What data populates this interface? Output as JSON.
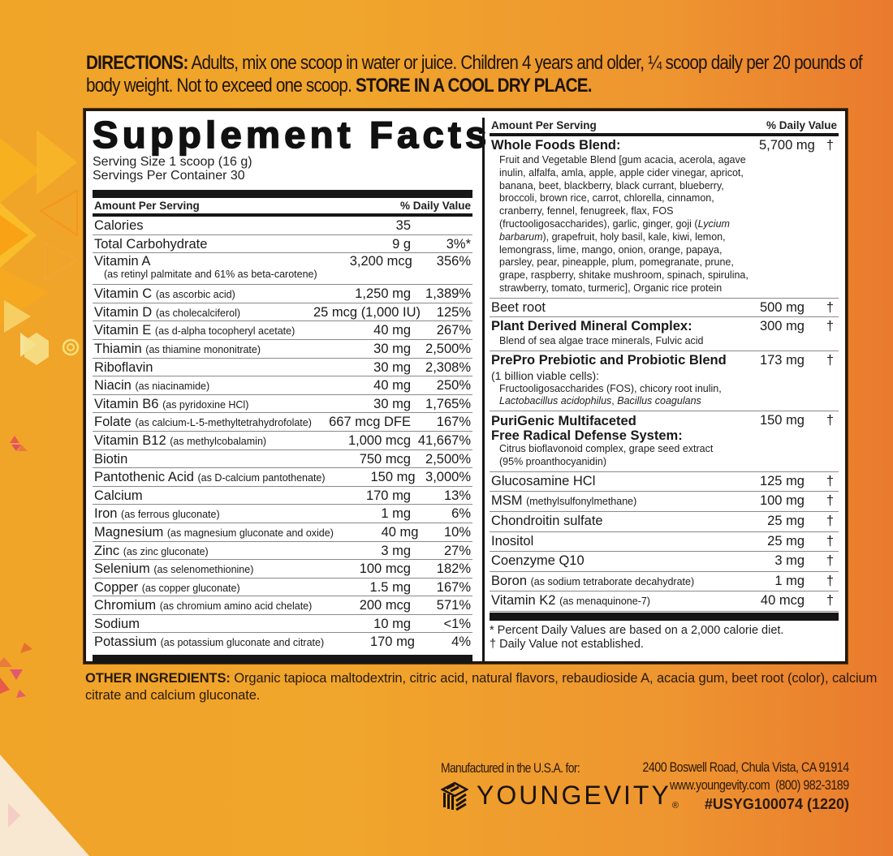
{
  "directions": {
    "label": "DIRECTIONS:",
    "text": " Adults, mix one scoop in water or juice. Children 4 years and older, ¼ scoop daily per 20 pounds of body weight. Not to exceed one scoop. ",
    "storage": "STORE IN A COOL DRY PLACE."
  },
  "facts": {
    "title": "Supplement Facts",
    "serving_size": "Serving Size 1 scoop (16 g)",
    "servings_per_container": "Servings Per Container 30",
    "header_amount": "Amount Per Serving",
    "header_dv": "% Daily Value",
    "calories": {
      "name": "Calories",
      "amount": "35",
      "dv": ""
    },
    "carbs": {
      "name": "Total Carbohydrate",
      "amount": "9 g",
      "dv": "3%*"
    },
    "vitamin_a": {
      "name": "Vitamin A",
      "source": "(as retinyl palmitate and 61% as beta-carotene)",
      "amount": "3,200 mcg",
      "dv": "356%"
    },
    "nutrients": [
      {
        "name": "Vitamin C",
        "source": "(as ascorbic acid)",
        "amount": "1,250 mg",
        "dv": "1,389%"
      },
      {
        "name": "Vitamin D",
        "source": "(as cholecalciferol)",
        "amount": "25 mcg (1,000 IU)",
        "dv": "125%"
      },
      {
        "name": "Vitamin E",
        "source": "(as d-alpha tocopheryl acetate)",
        "amount": "40 mg",
        "dv": "267%"
      },
      {
        "name": "Thiamin",
        "source": "(as thiamine mononitrate)",
        "amount": "30 mg",
        "dv": "2,500%"
      },
      {
        "name": "Riboflavin",
        "source": "",
        "amount": "30 mg",
        "dv": "2,308%"
      },
      {
        "name": "Niacin",
        "source": "(as niacinamide)",
        "amount": "40 mg",
        "dv": "250%"
      },
      {
        "name": "Vitamin B6",
        "source": "(as pyridoxine HCl)",
        "amount": "30 mg",
        "dv": "1,765%"
      },
      {
        "name": "Folate",
        "source": "(as calcium-L-5-methyltetrahydrofolate)",
        "amount": "667 mcg DFE",
        "dv": "167%"
      },
      {
        "name": "Vitamin B12",
        "source": "(as methylcobalamin)",
        "amount": "1,000 mcg",
        "dv": "41,667%"
      },
      {
        "name": "Biotin",
        "source": "",
        "amount": "750 mcg",
        "dv": "2,500%"
      },
      {
        "name": "Pantothenic Acid",
        "source": "(as D-calcium pantothenate)",
        "amount": "150 mg",
        "dv": "3,000%"
      },
      {
        "name": "Calcium",
        "source": "",
        "amount": "170 mg",
        "dv": "13%"
      },
      {
        "name": "Iron",
        "source": "(as ferrous gluconate)",
        "amount": "1 mg",
        "dv": "6%"
      },
      {
        "name": "Magnesium",
        "source": "(as magnesium gluconate and oxide)",
        "amount": "40 mg",
        "dv": "10%"
      },
      {
        "name": "Zinc",
        "source": "(as zinc gluconate)",
        "amount": "3 mg",
        "dv": "27%"
      },
      {
        "name": "Selenium",
        "source": "(as selenomethionine)",
        "amount": "100 mcg",
        "dv": "182%"
      },
      {
        "name": "Copper",
        "source": "(as copper gluconate)",
        "amount": "1.5 mg",
        "dv": "167%"
      },
      {
        "name": "Chromium",
        "source": "(as chromium amino acid chelate)",
        "amount": "200 mcg",
        "dv": "571%"
      },
      {
        "name": "Sodium",
        "source": "",
        "amount": "10 mg",
        "dv": "<1%"
      },
      {
        "name": "Potassium",
        "source": "(as potassium gluconate and citrate)",
        "amount": "170 mg",
        "dv": "4%"
      }
    ],
    "right": {
      "header_amount": "Amount Per Serving",
      "header_dv": "% Daily Value",
      "whole_foods": {
        "name": "Whole Foods Blend:",
        "amount": "5,700 mg",
        "dv": "†",
        "detail_pre": "Fruit and Vegetable Blend [gum acacia, acerola, agave inulin, alfalfa, amla, apple, apple cider vinegar, apricot, banana, beet, blackberry, black currant, blueberry, broccoli, brown rice, carrot, chlorella, cinnamon, cranberry, fennel, fenugreek, flax, FOS (fructooligosaccharides), garlic, ginger, goji (",
        "detail_italic": "Lycium barbarum",
        "detail_post": "), grapefruit, holy basil, kale, kiwi, lemon, lemongrass, lime, mango, onion, orange, papaya, parsley, pear, pineapple, plum, pomegranate, prune, grape, raspberry, shitake mushroom, spinach, spirulina, strawberry, tomato, turmeric], Organic rice protein"
      },
      "beet_root": {
        "name": "Beet root",
        "amount": "500 mg",
        "dv": "†"
      },
      "mineral_complex": {
        "name": "Plant Derived Mineral Complex:",
        "amount": "300 mg",
        "dv": "†",
        "detail": "Blend of sea algae trace minerals, Fulvic acid"
      },
      "prepro": {
        "name": "PrePro Prebiotic and Probiotic Blend",
        "amount": "173 mg",
        "dv": "†",
        "cells": "(1 billion viable cells):",
        "detail": "Fructooligosaccharides (FOS), chicory root inulin,",
        "detail_italic_1": "Lactobacillus acidophilus",
        "detail_sep": ", ",
        "detail_italic_2": "Bacillus coagulans"
      },
      "purigenic": {
        "name_line1": "PuriGenic Multifaceted",
        "name_line2": "Free Radical Defense System:",
        "amount": "150 mg",
        "dv": "†",
        "detail_line1": "Citrus bioflavonoid complex, grape seed extract",
        "detail_line2": "(95% proanthocyanidin)"
      },
      "items": [
        {
          "name": "Glucosamine HCl",
          "source": "",
          "amount": "125 mg",
          "dv": "†"
        },
        {
          "name": "MSM",
          "source": "(methylsulfonylmethane)",
          "amount": "100 mg",
          "dv": "†"
        },
        {
          "name": "Chondroitin sulfate",
          "source": "",
          "amount": "25 mg",
          "dv": "†"
        },
        {
          "name": "Inositol",
          "source": "",
          "amount": "25 mg",
          "dv": "†"
        },
        {
          "name": "Coenzyme Q10",
          "source": "",
          "amount": "3 mg",
          "dv": "†"
        },
        {
          "name": "Boron",
          "source": "(as sodium tetraborate decahydrate)",
          "amount": "1 mg",
          "dv": "†"
        },
        {
          "name": "Vitamin K2",
          "source": "(as menaquinone-7)",
          "amount": "40 mcg",
          "dv": "†"
        }
      ],
      "footnote_1": "* Percent Daily Values are based on a 2,000 calorie diet.",
      "footnote_2": "† Daily Value not established."
    }
  },
  "other_ingredients": {
    "label": "OTHER INGREDIENTS:",
    "text": " Organic tapioca maltodextrin, citric acid, natural flavors, rebaudioside A, acacia gum, beet root (color), calcium citrate and calcium gluconate."
  },
  "manufacturer": {
    "made_in": "Manufactured in the U.S.A. for:",
    "brand": "YOUNGEVITY",
    "registered": "®",
    "logo_icon": "youngevity-cube-icon",
    "address": "2400 Boswell Road, Chula Vista, CA 91914",
    "website": "www.youngevity.com",
    "phone": "(800) 982-3189",
    "product_code": "#USYG100074 (1220)"
  },
  "colors": {
    "background_left": "#f0a428",
    "background_right": "#e97a2e",
    "panel_border": "#241810",
    "text_dark": "#1e140c"
  }
}
